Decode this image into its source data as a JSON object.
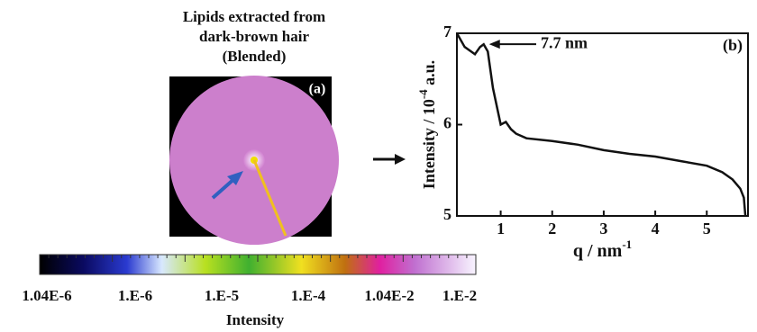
{
  "panel_a": {
    "title": [
      "Lipids extracted from",
      "dark-brown hair",
      "(Blended)"
    ],
    "label": "(a)",
    "colorbar": {
      "ticks": [
        "1.04E-6",
        "1.E-6",
        "1.E-5",
        "1.E-4",
        "1.04E-2",
        "1.E-2"
      ],
      "label": "Intensity"
    }
  },
  "chart_data": {
    "type": "line",
    "panel_label": "(b)",
    "annotation": "7.7 nm",
    "xlabel": {
      "text": "q / nm",
      "sup": "-1"
    },
    "ylabel": {
      "text": "Intensity / 10",
      "sup": "-4",
      "after": " a.u."
    },
    "x": [
      0.15,
      0.3,
      0.5,
      0.6,
      0.67,
      0.75,
      0.85,
      1.0,
      1.1,
      1.2,
      1.3,
      1.5,
      2.0,
      2.5,
      3.0,
      3.5,
      4.0,
      4.5,
      5.0,
      5.3,
      5.5,
      5.65,
      5.72,
      5.75
    ],
    "values": [
      7.0,
      6.85,
      6.77,
      6.85,
      6.88,
      6.8,
      6.4,
      6.0,
      6.03,
      5.95,
      5.9,
      5.85,
      5.82,
      5.78,
      5.72,
      5.68,
      5.65,
      5.6,
      5.55,
      5.48,
      5.4,
      5.3,
      5.2,
      5.0
    ],
    "color": "#111111",
    "xlim": [
      0.15,
      5.8
    ],
    "ylim": [
      5,
      7
    ],
    "xticks": [
      1,
      2,
      3,
      4,
      5
    ],
    "yticks": [
      5,
      6,
      7
    ]
  }
}
